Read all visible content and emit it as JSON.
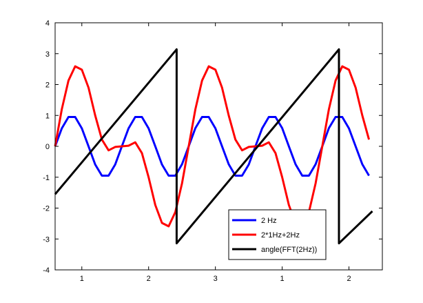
{
  "chart_data": {
    "type": "line",
    "title": "",
    "xlabel": "",
    "ylabel": "",
    "xlim": [
      0.6,
      5.5
    ],
    "ylim": [
      -4,
      4
    ],
    "x_ticks": [
      {
        "pos": 1.0,
        "label": "1"
      },
      {
        "pos": 2.0,
        "label": "2"
      },
      {
        "pos": 3.0,
        "label": "3"
      },
      {
        "pos": 4.0,
        "label": "1"
      },
      {
        "pos": 5.0,
        "label": "2"
      }
    ],
    "y_ticks": [
      {
        "pos": -4,
        "label": "-4"
      },
      {
        "pos": -3,
        "label": "-3"
      },
      {
        "pos": -2,
        "label": "-2"
      },
      {
        "pos": -1,
        "label": "-1"
      },
      {
        "pos": 0,
        "label": "0"
      },
      {
        "pos": 1,
        "label": "1"
      },
      {
        "pos": 2,
        "label": "2"
      },
      {
        "pos": 3,
        "label": "3"
      },
      {
        "pos": 4,
        "label": "4"
      }
    ],
    "grid": false,
    "legend_position": "bottom-right",
    "series": [
      {
        "name": "2 Hz",
        "color": "#0000ff",
        "x": [
          0.6,
          0.7,
          0.8,
          0.9,
          1.0,
          1.1,
          1.2,
          1.3,
          1.4,
          1.5,
          1.6,
          1.7,
          1.8,
          1.9,
          2.0,
          2.1,
          2.2,
          2.3,
          2.4,
          2.5,
          2.6,
          2.7,
          2.8,
          2.9,
          3.0,
          3.1,
          3.2,
          3.3,
          3.4,
          3.5,
          3.6,
          3.7,
          3.8,
          3.9,
          4.0,
          4.1,
          4.2,
          4.3,
          4.4,
          4.5,
          4.6,
          4.7,
          4.8,
          4.9,
          5.0,
          5.1,
          5.2,
          5.3
        ],
        "y": [
          0,
          0.58,
          0.95,
          0.95,
          0.58,
          0,
          -0.59,
          -0.95,
          -0.95,
          -0.59,
          0,
          0.58,
          0.95,
          0.95,
          0.58,
          0,
          -0.59,
          -0.95,
          -0.95,
          -0.58,
          0,
          0.59,
          0.95,
          0.95,
          0.58,
          0,
          -0.58,
          -0.95,
          -0.95,
          -0.59,
          0,
          0.58,
          0.95,
          0.95,
          0.59,
          0,
          -0.58,
          -0.95,
          -0.95,
          -0.58,
          0,
          0.59,
          0.95,
          0.95,
          0.58,
          0,
          -0.58,
          -0.95
        ]
      },
      {
        "name": "2*1Hz+2Hz",
        "color": "#ff0000",
        "x": [
          0.6,
          0.7,
          0.8,
          0.9,
          1.0,
          1.1,
          1.2,
          1.3,
          1.4,
          1.5,
          1.6,
          1.7,
          1.8,
          1.9,
          2.0,
          2.1,
          2.2,
          2.3,
          2.4,
          2.5,
          2.6,
          2.7,
          2.8,
          2.9,
          3.0,
          3.1,
          3.2,
          3.3,
          3.4,
          3.5,
          3.6,
          3.7,
          3.8,
          3.9,
          4.0,
          4.1,
          4.2,
          4.3,
          4.4,
          4.5,
          4.6,
          4.7,
          4.8,
          4.9,
          5.0,
          5.1,
          5.2,
          5.3
        ],
        "y": [
          0,
          1.2,
          2.13,
          2.59,
          2.48,
          1.9,
          1.0,
          0.22,
          -0.13,
          -0.02,
          0,
          0.02,
          0.13,
          -0.22,
          -1.0,
          -1.9,
          -2.48,
          -2.59,
          -2.13,
          -1.2,
          0,
          1.2,
          2.13,
          2.59,
          2.48,
          1.9,
          1.0,
          0.22,
          -0.13,
          -0.02,
          0,
          0.02,
          0.13,
          -0.22,
          -1.0,
          -1.9,
          -2.48,
          -2.59,
          -2.13,
          -1.2,
          0,
          1.2,
          2.13,
          2.59,
          2.48,
          1.9,
          1.0,
          0.22
        ]
      },
      {
        "name": "angle(FFT(2Hz))",
        "color": "#000000",
        "x": [
          0.6,
          2.42,
          2.42,
          4.85,
          4.85,
          5.35
        ],
        "y": [
          -1.55,
          3.14,
          -3.14,
          3.14,
          -3.14,
          -2.1
        ]
      }
    ]
  }
}
